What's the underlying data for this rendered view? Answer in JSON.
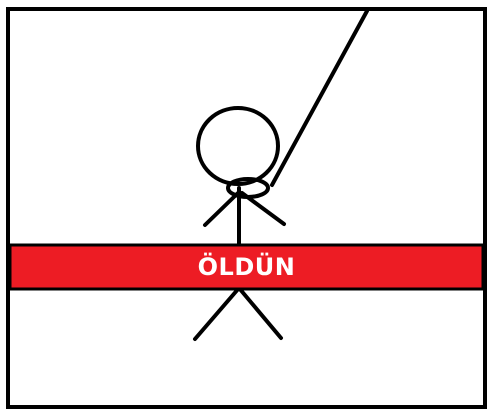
{
  "game": {
    "status_text": "ÖLDÜN",
    "banner_color": "#ed1c24",
    "stroke_color": "#000000",
    "background_color": "#ffffff"
  }
}
